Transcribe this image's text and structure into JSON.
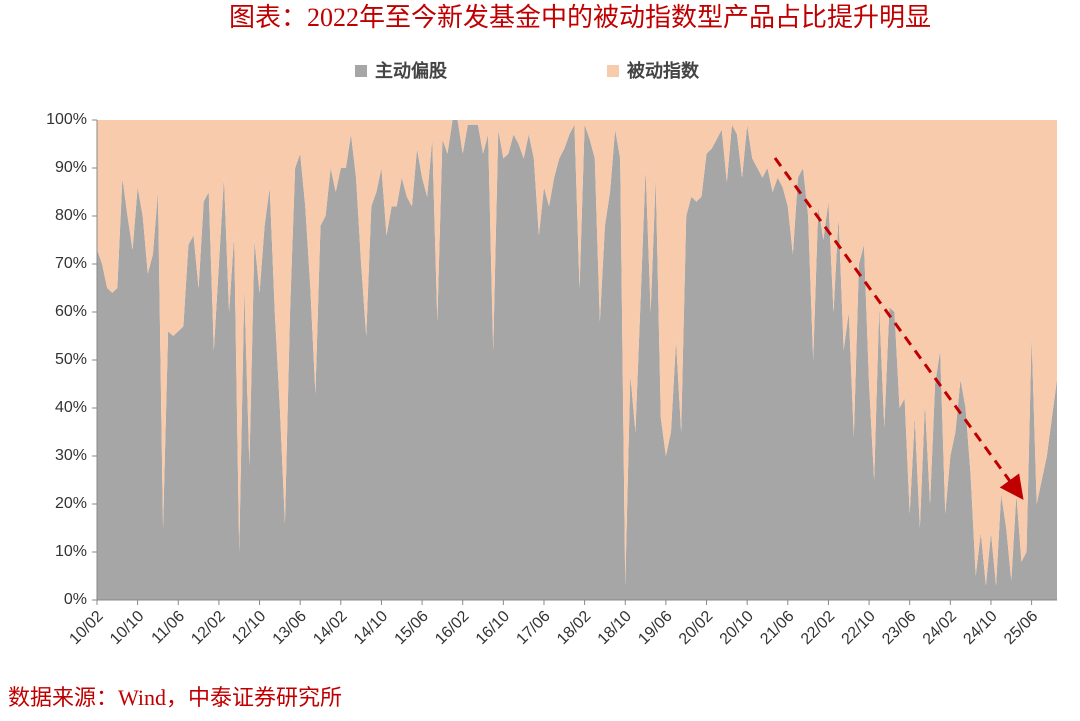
{
  "chart_data": {
    "type": "area",
    "stacked": true,
    "title": "图表：2022年至今新发基金中的被动指数型产品占比提升明显",
    "source": "数据来源：Wind，中泰证券研究所",
    "categories": [
      "10/02",
      null,
      null,
      null,
      null,
      null,
      null,
      null,
      "10/10",
      null,
      null,
      null,
      null,
      null,
      null,
      null,
      "11/06",
      null,
      null,
      null,
      null,
      null,
      null,
      null,
      "12/02",
      null,
      null,
      null,
      null,
      null,
      null,
      null,
      "12/10",
      null,
      null,
      null,
      null,
      null,
      null,
      null,
      "13/06",
      null,
      null,
      null,
      null,
      null,
      null,
      null,
      "14/02",
      null,
      null,
      null,
      null,
      null,
      null,
      null,
      "14/10",
      null,
      null,
      null,
      null,
      null,
      null,
      null,
      "15/06",
      null,
      null,
      null,
      null,
      null,
      null,
      null,
      "16/02",
      null,
      null,
      null,
      null,
      null,
      null,
      null,
      "16/10",
      null,
      null,
      null,
      null,
      null,
      null,
      null,
      "17/06",
      null,
      null,
      null,
      null,
      null,
      null,
      null,
      "18/02",
      null,
      null,
      null,
      null,
      null,
      null,
      null,
      "18/10",
      null,
      null,
      null,
      null,
      null,
      null,
      null,
      "19/06",
      null,
      null,
      null,
      null,
      null,
      null,
      null,
      "20/02",
      null,
      null,
      null,
      null,
      null,
      null,
      null,
      "20/10",
      null,
      null,
      null,
      null,
      null,
      null,
      null,
      "21/06",
      null,
      null,
      null,
      null,
      null,
      null,
      null,
      "22/02",
      null,
      null,
      null,
      null,
      null,
      null,
      null,
      "22/10",
      null,
      null,
      null,
      null,
      null,
      null,
      null,
      "23/06",
      null,
      null,
      null,
      null,
      null,
      null,
      null,
      "24/02",
      null,
      null,
      null,
      null,
      null,
      null,
      null,
      "24/10",
      null,
      null,
      null,
      null,
      null,
      null,
      null,
      "25/06",
      null,
      null,
      null,
      null,
      null
    ],
    "series": [
      {
        "name": "主动偏股",
        "color": "#a6a6a6",
        "values": [
          73,
          70,
          65,
          64,
          65,
          88,
          80,
          73,
          86,
          80,
          68,
          72,
          85,
          15,
          56,
          55,
          56,
          57,
          74,
          76,
          65,
          83,
          85,
          52,
          70,
          88,
          60,
          76,
          10,
          65,
          28,
          75,
          64,
          78,
          86,
          60,
          40,
          16,
          60,
          90,
          93,
          82,
          65,
          43,
          78,
          80,
          90,
          85,
          90,
          90,
          97,
          88,
          70,
          55,
          82,
          85,
          90,
          76,
          82,
          82,
          88,
          84,
          82,
          94,
          88,
          84,
          96,
          58,
          96,
          93,
          100,
          100,
          93,
          99,
          99,
          99,
          93,
          97,
          52,
          98,
          92,
          93,
          97,
          95,
          92,
          97,
          92,
          76,
          86,
          82,
          88,
          92,
          94,
          97,
          99,
          65,
          99,
          96,
          92,
          58,
          78,
          85,
          98,
          92,
          3,
          47,
          35,
          62,
          90,
          60,
          88,
          38,
          30,
          35,
          54,
          35,
          80,
          84,
          83,
          84,
          93,
          94,
          96,
          98,
          87,
          99,
          97,
          88,
          99,
          92,
          90,
          88,
          90,
          85,
          88,
          86,
          82,
          72,
          88,
          90,
          80,
          50,
          82,
          75,
          83,
          60,
          80,
          52,
          60,
          34,
          70,
          74,
          45,
          25,
          61,
          36,
          61,
          60,
          40,
          42,
          18,
          38,
          15,
          41,
          20,
          45,
          52,
          18,
          30,
          35,
          46,
          40,
          26,
          5,
          14,
          3,
          14,
          3,
          22,
          15,
          4,
          22,
          8,
          10,
          55,
          20,
          25,
          30,
          38,
          46
        ]
      },
      {
        "name": "被动指数",
        "color": "#f8cbad",
        "values": [
          27,
          30,
          35,
          36,
          35,
          12,
          20,
          27,
          14,
          20,
          32,
          28,
          15,
          85,
          44,
          45,
          44,
          43,
          26,
          24,
          35,
          17,
          15,
          48,
          30,
          12,
          40,
          24,
          90,
          35,
          72,
          25,
          36,
          22,
          14,
          40,
          60,
          84,
          40,
          10,
          7,
          18,
          35,
          57,
          22,
          20,
          10,
          15,
          10,
          10,
          3,
          12,
          30,
          45,
          18,
          15,
          10,
          24,
          18,
          18,
          12,
          16,
          18,
          6,
          12,
          16,
          4,
          42,
          4,
          7,
          0,
          0,
          7,
          1,
          1,
          1,
          7,
          3,
          48,
          2,
          8,
          7,
          3,
          5,
          8,
          3,
          8,
          24,
          14,
          18,
          12,
          8,
          6,
          3,
          1,
          35,
          1,
          4,
          8,
          42,
          22,
          15,
          2,
          8,
          97,
          53,
          65,
          38,
          10,
          40,
          12,
          62,
          70,
          65,
          46,
          65,
          20,
          16,
          17,
          16,
          7,
          6,
          4,
          2,
          13,
          1,
          3,
          12,
          1,
          8,
          10,
          12,
          10,
          15,
          12,
          14,
          18,
          28,
          12,
          10,
          20,
          50,
          18,
          25,
          17,
          40,
          20,
          48,
          40,
          66,
          30,
          26,
          55,
          75,
          39,
          64,
          39,
          40,
          60,
          58,
          82,
          62,
          85,
          59,
          80,
          55,
          48,
          82,
          70,
          65,
          54,
          60,
          74,
          95,
          86,
          97,
          86,
          97,
          78,
          85,
          96,
          78,
          92,
          90,
          45,
          80,
          75,
          70,
          62,
          54
        ]
      }
    ],
    "ylim": [
      0,
      100
    ],
    "yticks": [
      {
        "value": 0,
        "label": "0%"
      },
      {
        "value": 10,
        "label": "10%"
      },
      {
        "value": 20,
        "label": "20%"
      },
      {
        "value": 30,
        "label": "30%"
      },
      {
        "value": 40,
        "label": "40%"
      },
      {
        "value": 50,
        "label": "50%"
      },
      {
        "value": 60,
        "label": "60%"
      },
      {
        "value": 70,
        "label": "70%"
      },
      {
        "value": 80,
        "label": "80%"
      },
      {
        "value": 90,
        "label": "90%"
      },
      {
        "value": 100,
        "label": "100%"
      }
    ]
  }
}
